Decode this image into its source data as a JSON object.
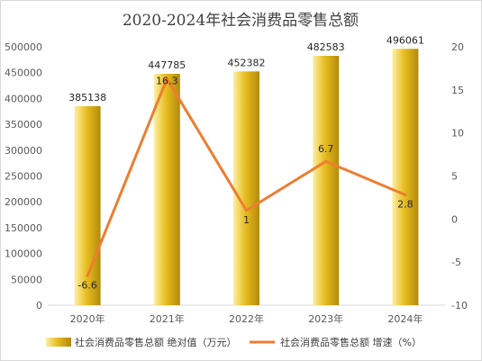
{
  "chart_data": {
    "type": "bar",
    "title": "2020-2024年社会消费品零售总额",
    "categories": [
      "2020年",
      "2021年",
      "2022年",
      "2023年",
      "2024年"
    ],
    "series": [
      {
        "name": "社会消费品零售总额 绝对值（万元）",
        "type": "bar",
        "axis": "left",
        "values": [
          385138,
          447785,
          452382,
          482583,
          496061
        ],
        "labels": [
          "385138",
          "447785",
          "452382",
          "482583",
          "496061"
        ]
      },
      {
        "name": "社会消费品零售总额 增速（%）",
        "type": "line",
        "axis": "right",
        "values": [
          -6.6,
          16.3,
          1,
          6.7,
          2.8
        ],
        "labels": [
          "-6.6",
          "16.3",
          "1",
          "6.7",
          "2.8"
        ]
      }
    ],
    "y_left": {
      "lim": [
        0,
        500000
      ],
      "ticks": [
        0,
        50000,
        100000,
        150000,
        200000,
        250000,
        300000,
        350000,
        400000,
        450000,
        500000
      ],
      "tick_labels": [
        "0",
        "50000",
        "100000",
        "150000",
        "200000",
        "250000",
        "300000",
        "350000",
        "400000",
        "450000",
        "500000"
      ]
    },
    "y_right": {
      "lim": [
        -10,
        20
      ],
      "ticks": [
        -10,
        -5,
        0,
        5,
        10,
        15,
        20
      ],
      "tick_labels": [
        "-10",
        "-5",
        "0",
        "5",
        "10",
        "15",
        "20"
      ]
    },
    "grid": false,
    "legend_position": "bottom",
    "colors": {
      "bar_light": "#fdf0a6",
      "bar_mid": "#e8be20",
      "bar_dark": "#b38a0a",
      "line": "#ed7d31",
      "axis": "#d9d9d9"
    }
  }
}
